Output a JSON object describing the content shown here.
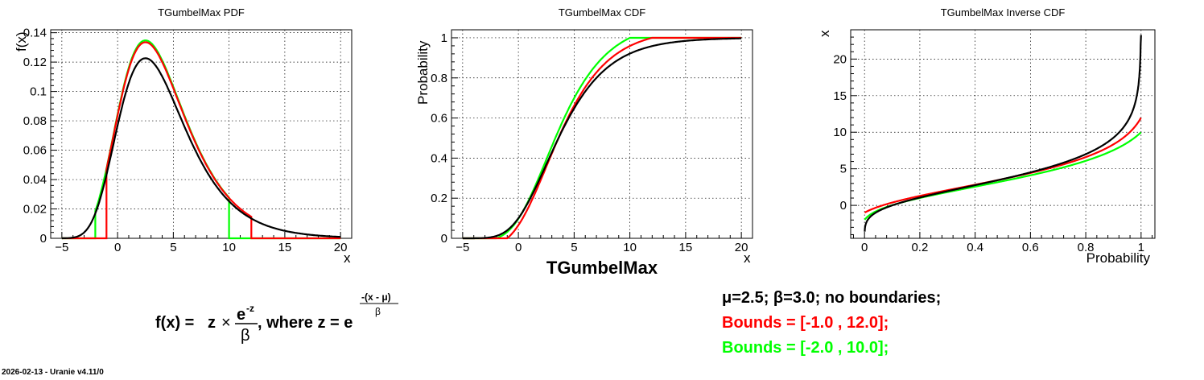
{
  "chart_data": [
    {
      "type": "line",
      "title": "TGumbelMax PDF",
      "xlabel": "x",
      "ylabel": "f(x)",
      "xlim": [
        -6,
        21
      ],
      "ylim": [
        0,
        0.142
      ],
      "xticks": [
        -5,
        0,
        5,
        10,
        15,
        20
      ],
      "yticks": [
        0,
        0.02,
        0.04,
        0.06,
        0.08,
        0.1,
        0.12,
        0.14
      ],
      "ytick_labels": [
        "0",
        "0.02",
        "0.04",
        "0.06",
        "0.08",
        "0.1",
        "0.12",
        "0.14"
      ],
      "grid": true,
      "distribution": "gumbel-max",
      "series": [
        {
          "color": "#000000",
          "mu": 2.5,
          "beta": 3.0,
          "bounds": [
            -5,
            20
          ]
        },
        {
          "color": "#ff0000",
          "mu": 2.5,
          "beta": 3.0,
          "bounds": [
            -1.0,
            12.0
          ]
        },
        {
          "color": "#00ff00",
          "mu": 2.5,
          "beta": 3.0,
          "bounds": [
            -2.0,
            10.0
          ]
        }
      ]
    },
    {
      "type": "line",
      "title": "TGumbelMax CDF",
      "xlabel": "x",
      "ylabel": "Probability",
      "xlim": [
        -6,
        21
      ],
      "ylim": [
        0,
        1.04
      ],
      "xticks": [
        -5,
        0,
        5,
        10,
        15,
        20
      ],
      "yticks": [
        0,
        0.2,
        0.4,
        0.6,
        0.8,
        1
      ],
      "ytick_labels": [
        "0",
        "0.2",
        "0.4",
        "0.6",
        "0.8",
        "1"
      ],
      "grid": true,
      "distribution": "gumbel-max",
      "series": [
        {
          "color": "#000000",
          "mu": 2.5,
          "beta": 3.0,
          "bounds": [
            -5,
            20
          ]
        },
        {
          "color": "#ff0000",
          "mu": 2.5,
          "beta": 3.0,
          "bounds": [
            -1.0,
            12.0
          ]
        },
        {
          "color": "#00ff00",
          "mu": 2.5,
          "beta": 3.0,
          "bounds": [
            -2.0,
            10.0
          ]
        }
      ]
    },
    {
      "type": "line",
      "title": "TGumbelMax Inverse CDF",
      "xlabel": "Probability",
      "ylabel": "x",
      "xlim": [
        -0.05,
        1.05
      ],
      "ylim": [
        -4.5,
        24
      ],
      "xticks": [
        0,
        0.2,
        0.4,
        0.6,
        0.8,
        1
      ],
      "yticks": [
        0,
        5,
        10,
        15,
        20
      ],
      "ytick_labels": [
        "0",
        "5",
        "10",
        "15",
        "20"
      ],
      "grid": true,
      "distribution": "gumbel-max",
      "series": [
        {
          "color": "#000000",
          "mu": 2.5,
          "beta": 3.0,
          "bounds": [
            -5,
            20
          ]
        },
        {
          "color": "#ff0000",
          "mu": 2.5,
          "beta": 3.0,
          "bounds": [
            -1.0,
            12.0
          ]
        },
        {
          "color": "#00ff00",
          "mu": 2.5,
          "beta": 3.0,
          "bounds": [
            -2.0,
            10.0
          ]
        }
      ]
    }
  ],
  "center_label": "TGumbelMax",
  "formula": {
    "lhs": "f(x) =",
    "z": "z",
    "times": "×",
    "numerator": "e",
    "numerator_exp": "-z",
    "denominator": "β",
    "where": ", where z = e",
    "exp_num": "-(x - μ)",
    "exp_den": "β"
  },
  "params": {
    "line1": "μ=2.5;  β=3.0;   no boundaries;",
    "line2": "Bounds = [-1.0 , 12.0];",
    "line3": "Bounds = [-2.0 , 10.0];",
    "colors": [
      "#000000",
      "#ff0000",
      "#00ff00"
    ]
  },
  "footer": "2026-02-13 - Uranie v4.11/0"
}
